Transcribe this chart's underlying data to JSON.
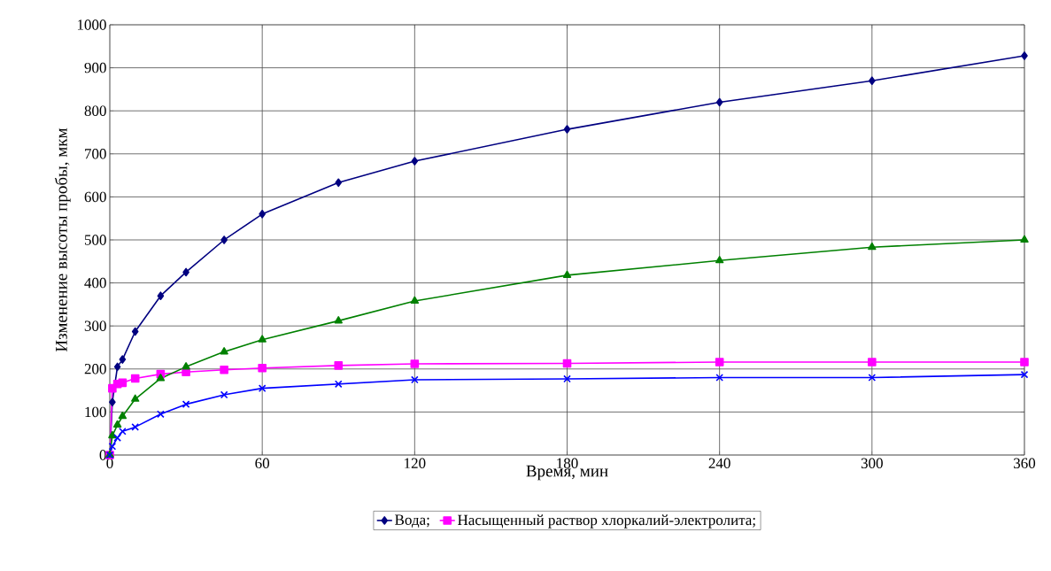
{
  "chart_data": {
    "type": "line",
    "xlabel": "Время, мин",
    "ylabel": "Изменение высоты пробы, мкм",
    "x": [
      0,
      1,
      3,
      5,
      10,
      20,
      30,
      45,
      60,
      90,
      120,
      180,
      240,
      300,
      360
    ],
    "series": [
      {
        "name": "Вода;",
        "color": "#000080",
        "marker": "diamond",
        "values": [
          0,
          123,
          205,
          222,
          287,
          370,
          425,
          500,
          560,
          633,
          683,
          757,
          820,
          870,
          928
        ]
      },
      {
        "name": "Насыщенный раствор хлоркалий-электролита;",
        "color": "#ff00ff",
        "marker": "square",
        "values": [
          0,
          155,
          165,
          168,
          178,
          188,
          193,
          198,
          202,
          208,
          212,
          213,
          216,
          216,
          216
        ]
      },
      {
        "color": "#008000",
        "marker": "triangle",
        "values": [
          0,
          45,
          70,
          90,
          130,
          178,
          205,
          240,
          268,
          312,
          358,
          418,
          452,
          483,
          500
        ]
      },
      {
        "color": "#0000ff",
        "marker": "cross",
        "values": [
          0,
          20,
          40,
          55,
          65,
          95,
          118,
          140,
          155,
          165,
          175,
          177,
          180,
          180,
          187
        ]
      }
    ],
    "xlim": [
      0,
      360
    ],
    "xticks": [
      0,
      60,
      120,
      180,
      240,
      300,
      360
    ],
    "ylim": [
      0,
      1000
    ],
    "yticks": [
      0,
      100,
      200,
      300,
      400,
      500,
      600,
      700,
      800,
      900,
      1000
    ],
    "grid": true,
    "legend": "bottom"
  }
}
